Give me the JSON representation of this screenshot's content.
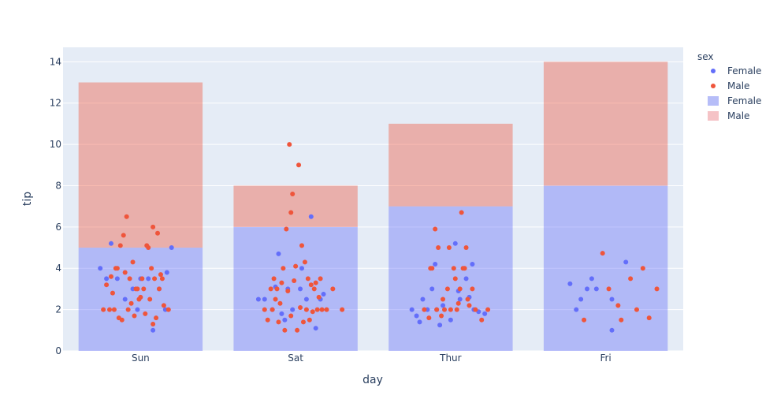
{
  "chart_data": {
    "type": "bar",
    "xlabel": "day",
    "ylabel": "tip",
    "ylim": [
      0,
      14.7
    ],
    "yticks": [
      "0",
      "2",
      "4",
      "6",
      "8",
      "10",
      "12",
      "14"
    ],
    "categories": [
      "Sun",
      "Sat",
      "Thur",
      "Fri"
    ],
    "legend": {
      "title": "sex",
      "placement": "top-right",
      "entries": [
        {
          "label": "Female",
          "kind": "marker",
          "color": "#636efa"
        },
        {
          "label": "Male",
          "kind": "marker",
          "color": "#ef553b"
        },
        {
          "label": "Female",
          "kind": "bar",
          "color": "#b6bdf8"
        },
        {
          "label": "Male",
          "kind": "bar",
          "color": "#f5c3c6"
        }
      ]
    },
    "bar_series": [
      {
        "name": "Female",
        "values": [
          5,
          6,
          7,
          8
        ],
        "color": "#636efa"
      },
      {
        "name": "Male",
        "values": [
          8,
          2,
          4,
          6
        ],
        "color": "#ef553b"
      }
    ],
    "scatter_series": [
      {
        "name": "Female",
        "color": "#636efa",
        "points": [
          [
            "Sun",
            -0.26,
            4.0
          ],
          [
            "Sun",
            -0.22,
            3.5
          ],
          [
            "Sun",
            -0.19,
            5.2
          ],
          [
            "Sun",
            -0.15,
            3.5
          ],
          [
            "Sun",
            -0.1,
            2.5
          ],
          [
            "Sun",
            -0.05,
            3.0
          ],
          [
            "Sun",
            0.0,
            3.5
          ],
          [
            "Sun",
            0.08,
            1.0
          ],
          [
            "Sun",
            0.12,
            3.0
          ],
          [
            "Sun",
            0.16,
            2.0
          ],
          [
            "Sun",
            0.17,
            3.8
          ],
          [
            "Sun",
            0.2,
            5.0
          ],
          [
            "Sun",
            0.05,
            3.5
          ],
          [
            "Sun",
            -0.02,
            2.0
          ],
          [
            "Sat",
            -0.24,
            2.5
          ],
          [
            "Sat",
            -0.2,
            2.5
          ],
          [
            "Sat",
            -0.15,
            2.0
          ],
          [
            "Sat",
            -0.11,
            4.7
          ],
          [
            "Sat",
            -0.05,
            3.0
          ],
          [
            "Sat",
            -0.02,
            2.0
          ],
          [
            "Sat",
            0.03,
            3.0
          ],
          [
            "Sat",
            0.07,
            2.5
          ],
          [
            "Sat",
            0.1,
            6.5
          ],
          [
            "Sat",
            0.13,
            1.1
          ],
          [
            "Sat",
            0.16,
            2.5
          ],
          [
            "Sat",
            -0.09,
            1.8
          ],
          [
            "Sat",
            -0.07,
            1.5
          ],
          [
            "Sat",
            0.04,
            4.0
          ],
          [
            "Sat",
            -0.13,
            3.1
          ],
          [
            "Sat",
            0.18,
            2.75
          ],
          [
            "Thur",
            -0.25,
            2.0
          ],
          [
            "Thur",
            -0.22,
            1.7
          ],
          [
            "Thur",
            -0.2,
            1.4
          ],
          [
            "Thur",
            -0.18,
            2.5
          ],
          [
            "Thur",
            -0.15,
            2.0
          ],
          [
            "Thur",
            -0.12,
            3.0
          ],
          [
            "Thur",
            -0.1,
            4.2
          ],
          [
            "Thur",
            -0.05,
            2.2
          ],
          [
            "Thur",
            0.0,
            1.5
          ],
          [
            "Thur",
            0.03,
            5.2
          ],
          [
            "Thur",
            0.06,
            2.5
          ],
          [
            "Thur",
            0.1,
            3.5
          ],
          [
            "Thur",
            0.14,
            4.2
          ],
          [
            "Thur",
            0.18,
            1.9
          ],
          [
            "Thur",
            0.22,
            1.8
          ],
          [
            "Thur",
            -0.07,
            1.25
          ],
          [
            "Thur",
            0.12,
            2.6
          ],
          [
            "Thur",
            0.15,
            2.0
          ],
          [
            "Thur",
            -0.09,
            2.0
          ],
          [
            "Thur",
            0.05,
            2.9
          ],
          [
            "Fri",
            -0.23,
            3.25
          ],
          [
            "Fri",
            -0.19,
            2.0
          ],
          [
            "Fri",
            -0.16,
            2.5
          ],
          [
            "Fri",
            -0.12,
            3.0
          ],
          [
            "Fri",
            -0.09,
            3.5
          ],
          [
            "Fri",
            -0.06,
            3.0
          ],
          [
            "Fri",
            0.04,
            1.0
          ],
          [
            "Fri",
            0.04,
            2.5
          ],
          [
            "Fri",
            0.13,
            4.3
          ]
        ]
      },
      {
        "name": "Male",
        "color": "#ef553b",
        "points": [
          [
            "Sun",
            -0.24,
            2.0
          ],
          [
            "Sun",
            -0.22,
            3.2
          ],
          [
            "Sun",
            -0.2,
            2.0
          ],
          [
            "Sun",
            -0.18,
            2.8
          ],
          [
            "Sun",
            -0.16,
            4.0
          ],
          [
            "Sun",
            -0.13,
            5.1
          ],
          [
            "Sun",
            -0.11,
            5.6
          ],
          [
            "Sun",
            -0.09,
            6.5
          ],
          [
            "Sun",
            -0.07,
            3.5
          ],
          [
            "Sun",
            -0.05,
            4.3
          ],
          [
            "Sun",
            -0.03,
            3.0
          ],
          [
            "Sun",
            -0.01,
            2.5
          ],
          [
            "Sun",
            0.01,
            3.5
          ],
          [
            "Sun",
            0.03,
            1.8
          ],
          [
            "Sun",
            0.05,
            5.0
          ],
          [
            "Sun",
            0.07,
            4.0
          ],
          [
            "Sun",
            0.08,
            6.0
          ],
          [
            "Sun",
            0.09,
            3.5
          ],
          [
            "Sun",
            0.11,
            5.7
          ],
          [
            "Sun",
            0.12,
            3.0
          ],
          [
            "Sun",
            0.14,
            3.5
          ],
          [
            "Sun",
            0.15,
            2.2
          ],
          [
            "Sun",
            0.18,
            2.0
          ],
          [
            "Sun",
            -0.14,
            1.6
          ],
          [
            "Sun",
            -0.12,
            1.5
          ],
          [
            "Sun",
            -0.08,
            2.0
          ],
          [
            "Sun",
            -0.04,
            1.7
          ],
          [
            "Sun",
            0.0,
            2.6
          ],
          [
            "Sun",
            0.06,
            2.5
          ],
          [
            "Sun",
            0.08,
            1.3
          ],
          [
            "Sun",
            0.1,
            1.6
          ],
          [
            "Sun",
            -0.19,
            3.6
          ],
          [
            "Sun",
            -0.15,
            4.0
          ],
          [
            "Sun",
            -0.1,
            3.8
          ],
          [
            "Sun",
            -0.06,
            2.3
          ],
          [
            "Sun",
            0.02,
            3.0
          ],
          [
            "Sun",
            0.04,
            5.1
          ],
          [
            "Sun",
            -0.17,
            2.0
          ],
          [
            "Sun",
            0.13,
            3.7
          ],
          [
            "Sun",
            -0.02,
            3.0
          ],
          [
            "Sat",
            -0.2,
            2.0
          ],
          [
            "Sat",
            -0.16,
            3.0
          ],
          [
            "Sat",
            -0.14,
            3.5
          ],
          [
            "Sat",
            -0.12,
            3.0
          ],
          [
            "Sat",
            -0.1,
            2.3
          ],
          [
            "Sat",
            -0.08,
            4.0
          ],
          [
            "Sat",
            -0.06,
            5.9
          ],
          [
            "Sat",
            -0.04,
            10.0
          ],
          [
            "Sat",
            -0.03,
            6.7
          ],
          [
            "Sat",
            -0.02,
            7.6
          ],
          [
            "Sat",
            0.02,
            9.0
          ],
          [
            "Sat",
            0.04,
            5.1
          ],
          [
            "Sat",
            0.06,
            4.3
          ],
          [
            "Sat",
            0.08,
            3.5
          ],
          [
            "Sat",
            0.1,
            3.2
          ],
          [
            "Sat",
            0.12,
            3.0
          ],
          [
            "Sat",
            0.14,
            2.0
          ],
          [
            "Sat",
            0.16,
            3.5
          ],
          [
            "Sat",
            0.2,
            2.0
          ],
          [
            "Sat",
            0.24,
            3.0
          ],
          [
            "Sat",
            0.3,
            2.0
          ],
          [
            "Sat",
            -0.18,
            1.5
          ],
          [
            "Sat",
            -0.15,
            2.0
          ],
          [
            "Sat",
            -0.11,
            1.4
          ],
          [
            "Sat",
            -0.07,
            1.0
          ],
          [
            "Sat",
            -0.03,
            1.7
          ],
          [
            "Sat",
            0.01,
            1.0
          ],
          [
            "Sat",
            0.05,
            1.4
          ],
          [
            "Sat",
            0.09,
            1.5
          ],
          [
            "Sat",
            0.11,
            1.9
          ],
          [
            "Sat",
            0.15,
            2.6
          ],
          [
            "Sat",
            -0.13,
            2.5
          ],
          [
            "Sat",
            -0.09,
            3.3
          ],
          [
            "Sat",
            0.0,
            4.1
          ],
          [
            "Sat",
            0.03,
            2.1
          ],
          [
            "Sat",
            0.07,
            2.0
          ],
          [
            "Sat",
            -0.05,
            2.9
          ],
          [
            "Sat",
            0.13,
            3.3
          ],
          [
            "Sat",
            -0.01,
            3.4
          ],
          [
            "Sat",
            0.17,
            2.0
          ],
          [
            "Thur",
            -0.17,
            2.0
          ],
          [
            "Thur",
            -0.14,
            1.6
          ],
          [
            "Thur",
            -0.12,
            4.0
          ],
          [
            "Thur",
            -0.1,
            5.9
          ],
          [
            "Thur",
            -0.08,
            5.0
          ],
          [
            "Thur",
            -0.06,
            1.7
          ],
          [
            "Thur",
            -0.04,
            2.0
          ],
          [
            "Thur",
            -0.02,
            3.0
          ],
          [
            "Thur",
            0.0,
            2.0
          ],
          [
            "Thur",
            0.02,
            4.0
          ],
          [
            "Thur",
            0.04,
            2.0
          ],
          [
            "Thur",
            0.06,
            3.0
          ],
          [
            "Thur",
            0.08,
            4.0
          ],
          [
            "Thur",
            0.1,
            5.0
          ],
          [
            "Thur",
            0.12,
            2.2
          ],
          [
            "Thur",
            0.14,
            3.0
          ],
          [
            "Thur",
            0.16,
            2.0
          ],
          [
            "Thur",
            0.2,
            1.5
          ],
          [
            "Thur",
            0.24,
            2.0
          ],
          [
            "Thur",
            0.07,
            6.7
          ],
          [
            "Thur",
            -0.13,
            4.0
          ],
          [
            "Thur",
            -0.01,
            5.0
          ],
          [
            "Thur",
            0.03,
            3.5
          ],
          [
            "Thur",
            0.09,
            4.0
          ],
          [
            "Thur",
            0.11,
            2.5
          ],
          [
            "Thur",
            -0.09,
            2.0
          ],
          [
            "Thur",
            0.05,
            2.3
          ],
          [
            "Thur",
            -0.05,
            2.5
          ],
          [
            "Fri",
            -0.14,
            1.5
          ],
          [
            "Fri",
            -0.02,
            4.73
          ],
          [
            "Fri",
            0.02,
            3.0
          ],
          [
            "Fri",
            0.08,
            2.2
          ],
          [
            "Fri",
            0.1,
            1.5
          ],
          [
            "Fri",
            0.16,
            3.5
          ],
          [
            "Fri",
            0.2,
            2.0
          ],
          [
            "Fri",
            0.24,
            4.0
          ],
          [
            "Fri",
            0.28,
            1.6
          ],
          [
            "Fri",
            0.33,
            3.0
          ]
        ]
      }
    ]
  }
}
